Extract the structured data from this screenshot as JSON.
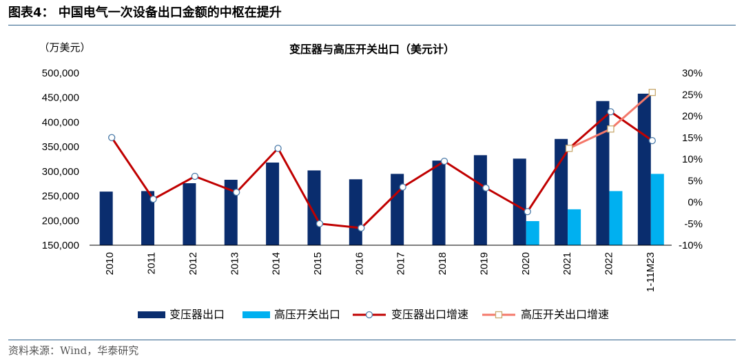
{
  "figure_title": "图表4：  中国电气一次设备出口金额的中枢在提升",
  "source_text": "资料来源：Wind，华泰研究",
  "colors": {
    "transformer_bar": "#0a2d6e",
    "switchgear_bar": "#00b0f0",
    "transformer_growth_line": "#c00000",
    "switchgear_growth_line": "#f4786a",
    "rule": "#2c5f8a"
  },
  "chart_data": {
    "type": "bar",
    "title": "变压器与高压开关出口（美元计）",
    "left_unit_label": "（万美元）",
    "categories": [
      "2010",
      "2011",
      "2012",
      "2013",
      "2014",
      "2015",
      "2016",
      "2017",
      "2018",
      "2019",
      "2020",
      "2021",
      "2022",
      "1-11M23"
    ],
    "left_axis": {
      "ylim": [
        150000,
        500000
      ],
      "ticks": [
        150000,
        200000,
        250000,
        300000,
        350000,
        400000,
        450000,
        500000
      ],
      "tick_labels": [
        "150,000",
        "200,000",
        "250,000",
        "300,000",
        "350,000",
        "400,000",
        "450,000",
        "500,000"
      ]
    },
    "right_axis": {
      "ylim": [
        -10,
        30
      ],
      "ticks": [
        -10,
        -5,
        0,
        5,
        10,
        15,
        20,
        25,
        30
      ],
      "tick_labels": [
        "-10%",
        "-5%",
        "0%",
        "5%",
        "10%",
        "15%",
        "20%",
        "25%",
        "30%"
      ]
    },
    "series": [
      {
        "name": "变压器出口",
        "kind": "bar",
        "axis": "left",
        "values": [
          259000,
          260000,
          276000,
          283000,
          318000,
          302000,
          284000,
          295000,
          322000,
          333000,
          326000,
          366000,
          443000,
          458000
        ]
      },
      {
        "name": "高压开关出口",
        "kind": "bar",
        "axis": "left",
        "values": [
          null,
          null,
          null,
          null,
          null,
          null,
          null,
          null,
          null,
          null,
          199000,
          223000,
          260000,
          295000
        ]
      },
      {
        "name": "变压器出口增速",
        "kind": "line",
        "axis": "right",
        "values": [
          15.0,
          0.7,
          6.0,
          2.3,
          12.5,
          -5.0,
          -6.0,
          3.5,
          9.5,
          3.3,
          -2.2,
          12.5,
          21.0,
          14.3
        ]
      },
      {
        "name": "高压开关出口增速",
        "kind": "line",
        "axis": "right",
        "values": [
          null,
          null,
          null,
          null,
          null,
          null,
          null,
          null,
          null,
          null,
          null,
          12.5,
          17.0,
          25.5
        ]
      }
    ],
    "legend_position": "bottom",
    "grid": false
  }
}
